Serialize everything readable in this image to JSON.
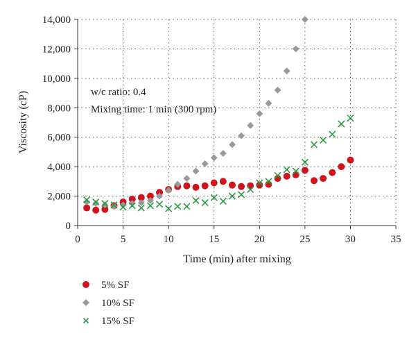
{
  "chart_data": {
    "type": "scatter",
    "xlabel": "Time (min) after mixing",
    "ylabel": "Viscosity (cP)",
    "xlim": [
      0,
      35
    ],
    "ylim": [
      0,
      14000
    ],
    "xticks": [
      "0",
      "5",
      "10",
      "15",
      "20",
      "25",
      "30",
      "35"
    ],
    "yticks": [
      "0",
      "2,000",
      "4,000",
      "6,000",
      "8,000",
      "10,000",
      "12,000",
      "14,000"
    ],
    "grid": true,
    "legend_position": "bottom-left",
    "annotations": [
      "w/c ratio: 0.4",
      "Mixing time: 1 min (300 rpm)"
    ],
    "series": [
      {
        "name": "5% SF",
        "marker": "circle",
        "color": "#d0141e",
        "x": [
          1,
          2,
          3,
          4,
          5,
          6,
          7,
          8,
          9,
          10,
          11,
          12,
          13,
          14,
          15,
          16,
          17,
          18,
          19,
          20,
          21,
          22,
          23,
          24,
          25,
          26,
          27,
          28,
          29,
          30
        ],
        "y": [
          1200,
          1050,
          1100,
          1350,
          1600,
          1800,
          1900,
          2000,
          2250,
          2450,
          2650,
          2700,
          2600,
          2700,
          2900,
          3000,
          2750,
          2650,
          2700,
          2750,
          2800,
          3200,
          3350,
          3450,
          3750,
          3050,
          3200,
          3600,
          4000,
          4450
        ]
      },
      {
        "name": "10% SF",
        "marker": "diamond",
        "color": "#999999",
        "x": [
          1,
          2,
          3,
          4,
          5,
          6,
          7,
          8,
          9,
          10,
          11,
          12,
          13,
          14,
          15,
          16,
          17,
          18,
          19,
          20,
          21,
          22,
          23,
          24,
          25
        ],
        "y": [
          1600,
          1500,
          1400,
          1300,
          1400,
          1500,
          1550,
          1700,
          2000,
          2400,
          2800,
          3200,
          3700,
          4200,
          4600,
          4900,
          5500,
          6100,
          6800,
          7600,
          8300,
          9200,
          10500,
          12000,
          14000
        ]
      },
      {
        "name": "15% SF",
        "marker": "cross",
        "color": "#2a9a3f",
        "x": [
          1,
          2,
          3,
          4,
          5,
          6,
          7,
          8,
          9,
          10,
          11,
          12,
          13,
          14,
          15,
          16,
          17,
          18,
          19,
          20,
          21,
          22,
          23,
          24,
          25,
          26,
          27,
          28,
          29,
          30
        ],
        "y": [
          1750,
          1600,
          1500,
          1400,
          1250,
          1350,
          1200,
          1350,
          1450,
          1150,
          1300,
          1300,
          1700,
          1550,
          1900,
          1650,
          2000,
          2100,
          2450,
          2900,
          3000,
          3400,
          3800,
          3700,
          4300,
          5500,
          5800,
          6200,
          6900,
          7300
        ]
      }
    ]
  }
}
